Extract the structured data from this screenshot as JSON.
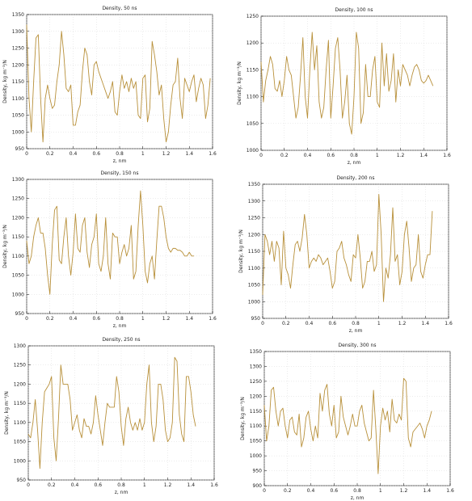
{
  "chart_data": [
    {
      "type": "line",
      "title": "Density, 50 ns",
      "xlabel": "z, nm",
      "ylabel": "Density, kg m⁻³/N",
      "xlim": [
        0,
        1.6
      ],
      "ylim": [
        950,
        1350
      ],
      "xticks": [
        "0",
        "0.2",
        "0.4",
        "0.6",
        "0.8",
        "1",
        "1.2",
        "1.4",
        "1.6"
      ],
      "yticks": [
        "950",
        "1000",
        "1050",
        "1100",
        "1150",
        "1200",
        "1250",
        "1300",
        "1350"
      ],
      "grid": true,
      "color": "#b8903a",
      "x": [
        0,
        0.02,
        0.04,
        0.06,
        0.08,
        0.1,
        0.12,
        0.14,
        0.16,
        0.18,
        0.2,
        0.22,
        0.24,
        0.26,
        0.28,
        0.3,
        0.32,
        0.34,
        0.36,
        0.38,
        0.4,
        0.42,
        0.44,
        0.46,
        0.48,
        0.5,
        0.52,
        0.54,
        0.56,
        0.58,
        0.6,
        0.62,
        0.64,
        0.66,
        0.68,
        0.7,
        0.72,
        0.74,
        0.76,
        0.78,
        0.8,
        0.82,
        0.84,
        0.86,
        0.88,
        0.9,
        0.92,
        0.94,
        0.96,
        0.98,
        1.0,
        1.02,
        1.04,
        1.06,
        1.08,
        1.1,
        1.12,
        1.14,
        1.16,
        1.18,
        1.2,
        1.22,
        1.24,
        1.26,
        1.28,
        1.3,
        1.32,
        1.34,
        1.36,
        1.38,
        1.4,
        1.42,
        1.44,
        1.46,
        1.48,
        1.5,
        1.52,
        1.54,
        1.56,
        1.58
      ],
      "y": [
        1320,
        1100,
        1000,
        1150,
        1280,
        1290,
        1100,
        970,
        1100,
        1140,
        1100,
        1070,
        1080,
        1150,
        1200,
        1300,
        1230,
        1130,
        1120,
        1140,
        1020,
        1020,
        1060,
        1080,
        1180,
        1250,
        1230,
        1150,
        1110,
        1200,
        1210,
        1180,
        1160,
        1140,
        1120,
        1100,
        1120,
        1150,
        1060,
        1050,
        1120,
        1170,
        1130,
        1150,
        1120,
        1160,
        1130,
        1150,
        1050,
        1040,
        1160,
        1170,
        1030,
        1070,
        1270,
        1230,
        1180,
        1110,
        1140,
        1040,
        970,
        1000,
        1080,
        1140,
        1150,
        1220,
        1100,
        1040,
        1160,
        1140,
        1120,
        1150,
        1170,
        1090,
        1130,
        1160,
        1140,
        1040,
        1080,
        1160
      ]
    },
    {
      "type": "line",
      "title": "Density, 100 ns",
      "xlabel": "z, nm",
      "ylabel": "Density, kg m⁻³/N",
      "xlim": [
        0,
        1.6
      ],
      "ylim": [
        1000,
        1250
      ],
      "xticks": [
        "0",
        "0.2",
        "0.4",
        "0.6",
        "0.8",
        "1",
        "1.2",
        "1.4",
        "1.6"
      ],
      "yticks": [
        "1000",
        "1050",
        "1100",
        "1150",
        "1200",
        "1250"
      ],
      "grid": true,
      "color": "#b8903a",
      "x": [
        0,
        0.02,
        0.04,
        0.06,
        0.08,
        0.1,
        0.12,
        0.14,
        0.16,
        0.18,
        0.2,
        0.22,
        0.24,
        0.26,
        0.28,
        0.3,
        0.32,
        0.34,
        0.36,
        0.38,
        0.4,
        0.42,
        0.44,
        0.46,
        0.48,
        0.5,
        0.52,
        0.54,
        0.56,
        0.58,
        0.6,
        0.62,
        0.64,
        0.66,
        0.68,
        0.7,
        0.72,
        0.74,
        0.76,
        0.78,
        0.8,
        0.82,
        0.84,
        0.86,
        0.88,
        0.9,
        0.92,
        0.94,
        0.96,
        0.98,
        1.0,
        1.02,
        1.04,
        1.06,
        1.08,
        1.1,
        1.12,
        1.14,
        1.16,
        1.18,
        1.2,
        1.22,
        1.24,
        1.26,
        1.28,
        1.3,
        1.32,
        1.34,
        1.36,
        1.38,
        1.4,
        1.42,
        1.44,
        1.46,
        1.48
      ],
      "y": [
        1165,
        1090,
        1130,
        1150,
        1175,
        1160,
        1115,
        1110,
        1130,
        1100,
        1130,
        1175,
        1150,
        1140,
        1100,
        1060,
        1080,
        1140,
        1210,
        1100,
        1060,
        1150,
        1220,
        1150,
        1195,
        1090,
        1060,
        1080,
        1150,
        1205,
        1060,
        1120,
        1190,
        1210,
        1150,
        1060,
        1090,
        1140,
        1050,
        1030,
        1100,
        1220,
        1190,
        1050,
        1070,
        1160,
        1100,
        1100,
        1150,
        1175,
        1090,
        1080,
        1200,
        1120,
        1180,
        1110,
        1130,
        1180,
        1090,
        1150,
        1120,
        1160,
        1150,
        1140,
        1120,
        1140,
        1155,
        1160,
        1150,
        1130,
        1125,
        1130,
        1140,
        1130,
        1120
      ]
    },
    {
      "type": "line",
      "title": "Density, 150 ns",
      "xlabel": "z, nm",
      "ylabel": "Density, kg m⁻³/N",
      "xlim": [
        0,
        1.6
      ],
      "ylim": [
        950,
        1300
      ],
      "xticks": [
        "0",
        "0.2",
        "0.4",
        "0.6",
        "0.8",
        "1",
        "1.2",
        "1.4",
        "1.6"
      ],
      "yticks": [
        "950",
        "1000",
        "1050",
        "1100",
        "1150",
        "1200",
        "1250",
        "1300"
      ],
      "grid": true,
      "color": "#b8903a",
      "x": [
        0,
        0.02,
        0.04,
        0.06,
        0.08,
        0.1,
        0.12,
        0.14,
        0.16,
        0.18,
        0.2,
        0.22,
        0.24,
        0.26,
        0.28,
        0.3,
        0.32,
        0.34,
        0.36,
        0.38,
        0.4,
        0.42,
        0.44,
        0.46,
        0.48,
        0.5,
        0.52,
        0.54,
        0.56,
        0.58,
        0.6,
        0.62,
        0.64,
        0.66,
        0.68,
        0.7,
        0.72,
        0.74,
        0.76,
        0.78,
        0.8,
        0.82,
        0.84,
        0.86,
        0.88,
        0.9,
        0.92,
        0.94,
        0.96,
        0.98,
        1.0,
        1.02,
        1.04,
        1.06,
        1.08,
        1.1,
        1.12,
        1.14,
        1.16,
        1.18,
        1.2,
        1.22,
        1.24,
        1.26,
        1.28,
        1.3,
        1.32,
        1.34,
        1.36,
        1.38,
        1.4,
        1.42,
        1.44
      ],
      "y": [
        1140,
        1080,
        1100,
        1150,
        1180,
        1200,
        1160,
        1160,
        1120,
        1050,
        1000,
        1130,
        1220,
        1230,
        1090,
        1080,
        1150,
        1200,
        1100,
        1050,
        1110,
        1210,
        1120,
        1110,
        1180,
        1200,
        1110,
        1070,
        1130,
        1150,
        1210,
        1080,
        1060,
        1100,
        1200,
        1080,
        1040,
        1160,
        1150,
        1150,
        1080,
        1110,
        1130,
        1100,
        1120,
        1180,
        1040,
        1060,
        1180,
        1270,
        1180,
        1060,
        1030,
        1080,
        1100,
        1040,
        1140,
        1230,
        1230,
        1200,
        1150,
        1120,
        1110,
        1120,
        1120,
        1115,
        1115,
        1110,
        1100,
        1100,
        1110,
        1100,
        1100
      ]
    },
    {
      "type": "line",
      "title": "Density, 200 ns",
      "xlabel": "z, nm",
      "ylabel": "Density, kg m⁻³/N",
      "xlim": [
        0,
        1.6
      ],
      "ylim": [
        950,
        1350
      ],
      "xticks": [
        "0",
        "0.2",
        "0.4",
        "0.6",
        "0.8",
        "1",
        "1.2",
        "1.4",
        "1.6"
      ],
      "yticks": [
        "950",
        "1000",
        "1050",
        "1100",
        "1150",
        "1200",
        "1250",
        "1300",
        "1350"
      ],
      "grid": true,
      "color": "#b8903a",
      "x": [
        0,
        0.02,
        0.04,
        0.06,
        0.08,
        0.1,
        0.12,
        0.14,
        0.16,
        0.18,
        0.2,
        0.22,
        0.24,
        0.26,
        0.28,
        0.3,
        0.32,
        0.34,
        0.36,
        0.38,
        0.4,
        0.42,
        0.44,
        0.46,
        0.48,
        0.5,
        0.52,
        0.54,
        0.56,
        0.58,
        0.6,
        0.62,
        0.64,
        0.66,
        0.68,
        0.7,
        0.72,
        0.74,
        0.76,
        0.78,
        0.8,
        0.82,
        0.84,
        0.86,
        0.88,
        0.9,
        0.92,
        0.94,
        0.96,
        0.98,
        1.0,
        1.02,
        1.04,
        1.06,
        1.08,
        1.1,
        1.12,
        1.14,
        1.16,
        1.18,
        1.2,
        1.22,
        1.24,
        1.26,
        1.28,
        1.3,
        1.32,
        1.34,
        1.36,
        1.38,
        1.4,
        1.42,
        1.44,
        1.46
      ],
      "y": [
        1020,
        1200,
        1180,
        1140,
        1180,
        1120,
        1180,
        1160,
        1050,
        1210,
        1100,
        1080,
        1040,
        1110,
        1170,
        1180,
        1150,
        1190,
        1260,
        1200,
        1100,
        1120,
        1130,
        1120,
        1140,
        1130,
        1110,
        1120,
        1130,
        1090,
        1040,
        1060,
        1150,
        1160,
        1180,
        1130,
        1110,
        1080,
        1060,
        1140,
        1130,
        1200,
        1130,
        1040,
        1060,
        1120,
        1120,
        1150,
        1090,
        1110,
        1320,
        1200,
        1000,
        1100,
        1070,
        1140,
        1280,
        1120,
        1140,
        1050,
        1090,
        1200,
        1240,
        1160,
        1060,
        1100,
        1110,
        1200,
        1090,
        1070,
        1110,
        1140,
        1140,
        1270
      ]
    },
    {
      "type": "line",
      "title": "Density, 250 ns",
      "xlabel": "z, nm",
      "ylabel": "Density, kg m⁻³/N",
      "xlim": [
        0,
        1.6
      ],
      "ylim": [
        950,
        1300
      ],
      "xticks": [
        "0",
        "0.2",
        "0.4",
        "0.6",
        "0.8",
        "1",
        "1.2",
        "1.4",
        "1.6"
      ],
      "yticks": [
        "950",
        "1000",
        "1050",
        "1100",
        "1150",
        "1200",
        "1250",
        "1300"
      ],
      "grid": true,
      "color": "#b8903a",
      "x": [
        0,
        0.02,
        0.04,
        0.06,
        0.08,
        0.1,
        0.12,
        0.14,
        0.16,
        0.18,
        0.2,
        0.22,
        0.24,
        0.26,
        0.28,
        0.3,
        0.32,
        0.34,
        0.36,
        0.38,
        0.4,
        0.42,
        0.44,
        0.46,
        0.48,
        0.5,
        0.52,
        0.54,
        0.56,
        0.58,
        0.6,
        0.62,
        0.64,
        0.66,
        0.68,
        0.7,
        0.72,
        0.74,
        0.76,
        0.78,
        0.8,
        0.82,
        0.84,
        0.86,
        0.88,
        0.9,
        0.92,
        0.94,
        0.96,
        0.98,
        1.0,
        1.02,
        1.04,
        1.06,
        1.08,
        1.1,
        1.12,
        1.14,
        1.16,
        1.18,
        1.2,
        1.22,
        1.24,
        1.26,
        1.28,
        1.3,
        1.32,
        1.34,
        1.36,
        1.38,
        1.4,
        1.42,
        1.44
      ],
      "y": [
        1070,
        1060,
        1100,
        1160,
        1080,
        980,
        1100,
        1180,
        1190,
        1200,
        1220,
        1060,
        1000,
        1110,
        1250,
        1200,
        1200,
        1200,
        1160,
        1080,
        1100,
        1120,
        1080,
        1060,
        1110,
        1090,
        1090,
        1070,
        1100,
        1170,
        1120,
        1080,
        1040,
        1100,
        1150,
        1140,
        1140,
        1140,
        1220,
        1180,
        1090,
        1040,
        1110,
        1140,
        1100,
        1080,
        1100,
        1080,
        1110,
        1080,
        1100,
        1200,
        1250,
        1100,
        1050,
        1090,
        1200,
        1200,
        1160,
        1080,
        1050,
        1060,
        1100,
        1270,
        1260,
        1120,
        1070,
        1050,
        1220,
        1220,
        1180,
        1120,
        1090
      ]
    },
    {
      "type": "line",
      "title": "Density, 300 ns",
      "xlabel": "z, nm",
      "ylabel": "Density, kg m⁻³/N",
      "xlim": [
        0,
        1.6
      ],
      "ylim": [
        900,
        1350
      ],
      "xticks": [
        "0",
        "0.2",
        "0.4",
        "0.6",
        "0.8",
        "1",
        "1.2",
        "1.4",
        "1.6"
      ],
      "yticks": [
        "900",
        "950",
        "1000",
        "1050",
        "1100",
        "1150",
        "1200",
        "1250",
        "1300",
        "1350"
      ],
      "grid": true,
      "color": "#b8903a",
      "x": [
        0,
        0.02,
        0.04,
        0.06,
        0.08,
        0.1,
        0.12,
        0.14,
        0.16,
        0.18,
        0.2,
        0.22,
        0.24,
        0.26,
        0.28,
        0.3,
        0.32,
        0.34,
        0.36,
        0.38,
        0.4,
        0.42,
        0.44,
        0.46,
        0.48,
        0.5,
        0.52,
        0.54,
        0.56,
        0.58,
        0.6,
        0.62,
        0.64,
        0.66,
        0.68,
        0.7,
        0.72,
        0.74,
        0.76,
        0.78,
        0.8,
        0.82,
        0.84,
        0.86,
        0.88,
        0.9,
        0.92,
        0.94,
        0.96,
        0.98,
        1.0,
        1.02,
        1.04,
        1.06,
        1.08,
        1.1,
        1.12,
        1.14,
        1.16,
        1.18,
        1.2,
        1.22,
        1.24,
        1.26,
        1.28,
        1.3,
        1.32,
        1.34,
        1.36,
        1.38,
        1.4,
        1.42,
        1.44
      ],
      "y": [
        1170,
        1050,
        1100,
        1220,
        1230,
        1150,
        1100,
        1150,
        1160,
        1100,
        1060,
        1120,
        1130,
        1080,
        1070,
        1140,
        1030,
        1060,
        1130,
        1150,
        1090,
        1050,
        1100,
        1060,
        1210,
        1150,
        1220,
        1240,
        1140,
        1100,
        1170,
        1060,
        1080,
        1200,
        1130,
        1100,
        1070,
        1100,
        1140,
        1100,
        1100,
        1150,
        1170,
        1110,
        1080,
        1050,
        1060,
        1220,
        1090,
        940,
        1100,
        1160,
        1120,
        1150,
        1080,
        1190,
        1120,
        1110,
        1140,
        1120,
        1260,
        1250,
        1060,
        1030,
        1080,
        1090,
        1100,
        1110,
        1090,
        1060,
        1100,
        1120,
        1150
      ]
    }
  ]
}
